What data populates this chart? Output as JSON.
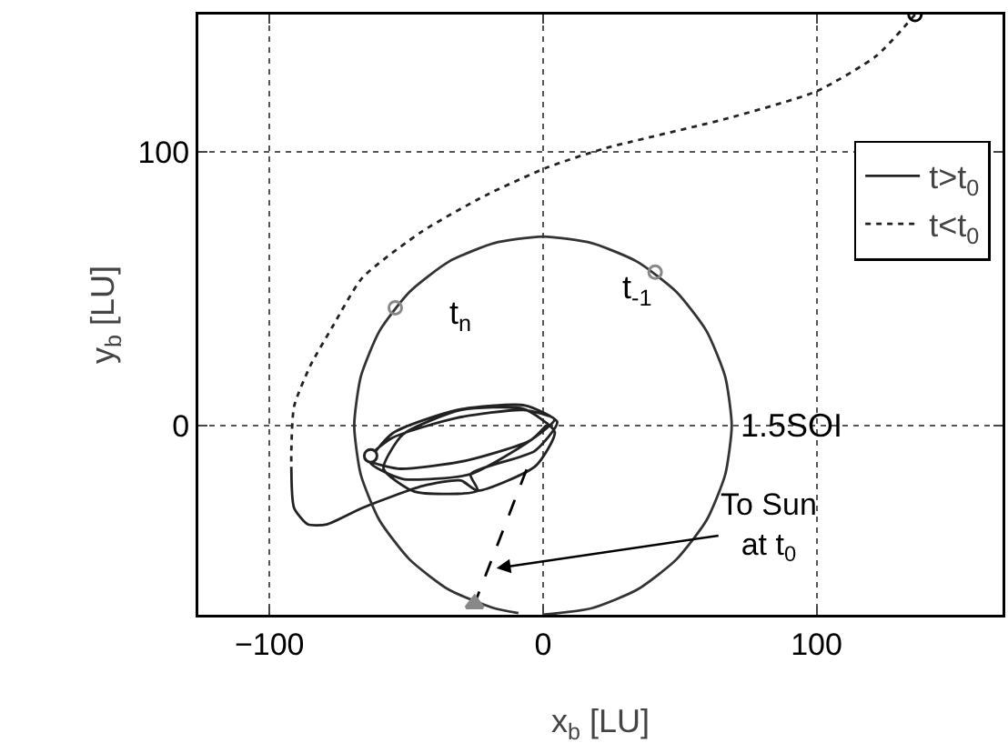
{
  "chart_data": {
    "type": "line",
    "xlabel": "x$_{b}$ [LU]",
    "ylabel": "y$_{b}$ [LU]",
    "xlim": [
      -126,
      168
    ],
    "ylim": [
      -69,
      150
    ],
    "xticks": [
      {
        "value": -100,
        "label": "−100"
      },
      0,
      100
    ],
    "yticks": [
      0,
      100
    ],
    "grid": true,
    "legend": "right",
    "series": [
      {
        "name": "t>t$_{0}$",
        "line_style": "solid",
        "color": "#222222",
        "x": [
          -92,
          -91,
          -86,
          -79,
          -66,
          -44,
          -30,
          -23.9,
          -2.7,
          4.3,
          -7.1,
          -30.1,
          -51.3,
          -58.3,
          -46.9,
          -23.9,
          -26.5,
          -3,
          5.2,
          -6.6,
          -31.5,
          -55,
          -63.2,
          -51.4,
          -26.5,
          -4.6,
          4.2,
          -7,
          -31.7,
          -55.4,
          -64.2,
          -53,
          -28.3,
          -4.6,
          2
        ],
        "values": [
          -15,
          -30,
          -36,
          -36,
          -30,
          -22,
          -20,
          -23.7,
          -14.7,
          -2.3,
          6.1,
          5.7,
          -3.3,
          -15.7,
          -24.1,
          -23.7,
          -17.7,
          -9.2,
          1.3,
          7.4,
          5.7,
          -2.8,
          -13.3,
          -19.4,
          -17.7,
          -5.4,
          2.3,
          5.7,
          2.8,
          -4.6,
          -12.3,
          -15.7,
          -12.8,
          -5.4,
          1
        ]
      },
      {
        "name": "t<t$_{0}$",
        "line_style": "dotted",
        "color": "#222222",
        "x": [
          136,
          122,
          100,
          67,
          22,
          1,
          -21,
          -44,
          -66,
          -77,
          -85,
          -91,
          -92,
          -92
        ],
        "values": [
          150,
          135,
          122,
          112,
          101,
          94,
          84,
          71,
          54,
          36,
          22,
          7,
          -9,
          -15
        ]
      },
      {
        "line_style": "solid",
        "color": "#333333",
        "x": [
          0,
          17.9,
          34.5,
          48.8,
          59.8,
          66.6,
          69,
          66.6,
          59.8,
          48.8,
          34.5,
          17.9,
          0,
          -17.9,
          -34.5,
          -48.8,
          -59.8,
          -66.6,
          -69,
          -66.6,
          -59.8,
          -48.8,
          -34.5,
          -17.9,
          -9
        ],
        "values": [
          -69,
          -66.6,
          -59.8,
          -48.8,
          -34.5,
          -17.9,
          0,
          17.9,
          34.5,
          48.8,
          59.8,
          66.6,
          69,
          66.6,
          59.8,
          48.8,
          34.5,
          17.9,
          0,
          -17.9,
          -34.5,
          -48.8,
          -59.8,
          -66.6,
          -68.4
        ]
      },
      {
        "line_style": "dashed",
        "color": "#000000",
        "x": [
          -6,
          -25
        ],
        "values": [
          -16,
          -65
        ]
      },
      {
        "type": "scatter",
        "marker": "circle",
        "x": [
          -54,
          41,
          136,
          -63
        ],
        "values": [
          43,
          56,
          150,
          -11
        ],
        "colors": [
          "#888888",
          "#888888",
          "#000000",
          "#ffffff"
        ]
      },
      {
        "type": "scatter",
        "marker": "triangle",
        "color": "#888888",
        "x": [
          -25
        ],
        "values": [
          -65
        ]
      }
    ],
    "annotations": [
      {
        "text": "t$_{n}$",
        "x": -54,
        "y": 43
      },
      {
        "text": "t$_{-1}$",
        "x": 41,
        "y": 56
      },
      {
        "text": "1.5SOI",
        "x": 69,
        "y": 0
      },
      {
        "text": "To Sun\nat t$_{0}$",
        "x": -17,
        "y": -52
      }
    ]
  }
}
